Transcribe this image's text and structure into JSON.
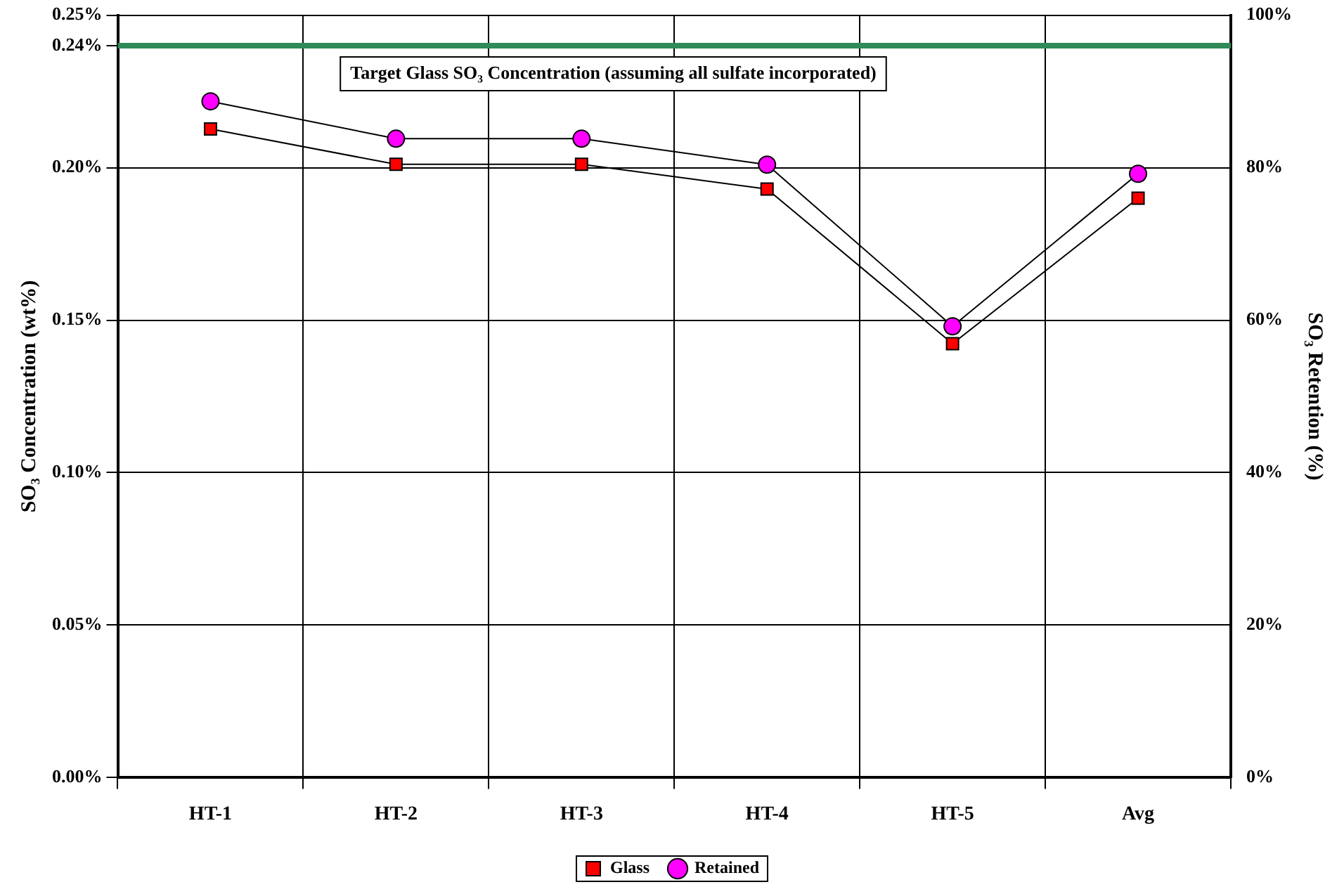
{
  "chart_data": {
    "type": "line",
    "categories": [
      "HT-1",
      "HT-2",
      "HT-3",
      "HT-4",
      "HT-5",
      "Avg"
    ],
    "ylabel": "SO₃ Concentration (wt%)",
    "y2label": "SO₃ Retention (%)",
    "series": [
      {
        "name": "Glass",
        "color": "#ff0000",
        "marker": "square",
        "values": [
          0.2127,
          0.2011,
          0.2011,
          0.193,
          0.1423,
          0.19
        ]
      },
      {
        "name": "Retained",
        "color": "#ff00ff",
        "marker": "circle",
        "axis": "y2",
        "values": [
          88.7,
          83.8,
          83.8,
          80.4,
          59.2,
          79.2
        ]
      }
    ],
    "ylim": [
      0,
      0.25
    ],
    "yticks": [
      {
        "value": 0,
        "label": "0.00%"
      },
      {
        "value": 0.05,
        "label": "0.05%"
      },
      {
        "value": 0.1,
        "label": "0.10%"
      },
      {
        "value": 0.15,
        "label": "0.15%"
      },
      {
        "value": 0.2,
        "label": "0.20%"
      },
      {
        "value": 0.24,
        "label": "0.24%"
      },
      {
        "value": 0.25,
        "label": "0.25%"
      }
    ],
    "y2lim": [
      0,
      100
    ],
    "y2ticks": [
      {
        "value": 0,
        "label": "0%"
      },
      {
        "value": 20,
        "label": "20%"
      },
      {
        "value": 40,
        "label": "40%"
      },
      {
        "value": 60,
        "label": "60%"
      },
      {
        "value": 80,
        "label": "80%"
      },
      {
        "value": 100,
        "label": "100%"
      }
    ],
    "ref_lines": [
      {
        "axis": "y",
        "value": 0.24,
        "label": "Target Glass SO₃ Concentration (assuming all sulfate incorporated)",
        "color": "#2e8b57"
      }
    ],
    "grid": true,
    "legend": "bottom",
    "line_style": "solid"
  }
}
